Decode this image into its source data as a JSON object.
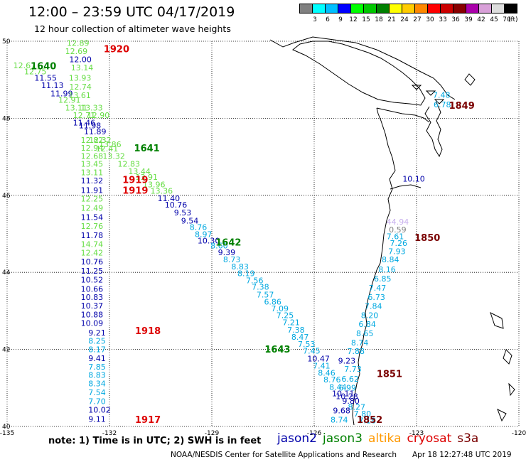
{
  "header": {
    "title": "12:00 – 23:59 UTC 04/17/2019",
    "subtitle": "12 hour collection of altimeter wave heights"
  },
  "legend": {
    "unit": "(ft)",
    "bins": [
      {
        "color": "#808080",
        "label": "3"
      },
      {
        "color": "#00ffff",
        "label": "6"
      },
      {
        "color": "#00bfff",
        "label": "9"
      },
      {
        "color": "#0000ff",
        "label": "12"
      },
      {
        "color": "#00ff00",
        "label": "15"
      },
      {
        "color": "#00c800",
        "label": "18"
      },
      {
        "color": "#008000",
        "label": "21"
      },
      {
        "color": "#ffff00",
        "label": "24"
      },
      {
        "color": "#ffcc00",
        "label": "27"
      },
      {
        "color": "#ff8800",
        "label": "30"
      },
      {
        "color": "#ff0000",
        "label": "33"
      },
      {
        "color": "#cc0000",
        "label": "36"
      },
      {
        "color": "#880000",
        "label": "39"
      },
      {
        "color": "#aa00aa",
        "label": "42"
      },
      {
        "color": "#d8a0d8",
        "label": "45"
      },
      {
        "color": "#dddddd",
        "label": "70"
      },
      {
        "color": "#000000",
        "label": ""
      }
    ]
  },
  "axes": {
    "lon_labels": [
      "-135",
      "-132",
      "-129",
      "-126",
      "-123",
      "-120"
    ],
    "lat_labels": [
      "50",
      "48",
      "46",
      "44",
      "42",
      "40"
    ]
  },
  "colors": {
    "jason2": "#0000aa",
    "jason3": "#008000",
    "altika": "#ff9900",
    "cryosat": "#dd0000",
    "s3a": "#7a0000",
    "light_green": "#66dd44",
    "cyan": "#00a8e0",
    "lavender": "#c8b0ee",
    "gray": "#808080"
  },
  "time_labels": [
    {
      "text": "1920",
      "lon": -132.17,
      "lat": 49.71,
      "sat": "cryosat"
    },
    {
      "text": "1640",
      "lon": -134.31,
      "lat": 49.27,
      "sat": "jason3"
    },
    {
      "text": "1849",
      "lon": -122.05,
      "lat": 48.25,
      "sat": "s3a"
    },
    {
      "text": "1641",
      "lon": -131.28,
      "lat": 47.14,
      "sat": "jason3"
    },
    {
      "text": "1919",
      "lon": -131.62,
      "lat": 46.32,
      "sat": "cryosat"
    },
    {
      "text": "1919",
      "lon": -131.62,
      "lat": 46.04,
      "sat": "cryosat"
    },
    {
      "text": "1850",
      "lon": -123.06,
      "lat": 44.82,
      "sat": "s3a"
    },
    {
      "text": "1642",
      "lon": -128.89,
      "lat": 44.7,
      "sat": "jason3"
    },
    {
      "text": "1918",
      "lon": -131.25,
      "lat": 42.4,
      "sat": "cryosat"
    },
    {
      "text": "1643",
      "lon": -127.45,
      "lat": 41.92,
      "sat": "jason3"
    },
    {
      "text": "1851",
      "lon": -124.17,
      "lat": 41.28,
      "sat": "s3a"
    },
    {
      "text": "1917",
      "lon": -131.25,
      "lat": 40.09,
      "sat": "cryosat"
    },
    {
      "text": "1852",
      "lon": -124.75,
      "lat": 40.09,
      "sat": "s3a"
    }
  ],
  "observations": [
    {
      "text": "12.89",
      "lon": -133.25,
      "lat": 49.88,
      "c": "light_green"
    },
    {
      "text": "12.69",
      "lon": -133.3,
      "lat": 49.67,
      "c": "light_green"
    },
    {
      "text": "12.00",
      "lon": -133.18,
      "lat": 49.46,
      "c": "jason2"
    },
    {
      "text": "12.67",
      "lon": -134.82,
      "lat": 49.3,
      "c": "light_green"
    },
    {
      "text": "12.75",
      "lon": -134.5,
      "lat": 49.14,
      "c": "light_green"
    },
    {
      "text": "13.14",
      "lon": -133.13,
      "lat": 49.24,
      "c": "light_green"
    },
    {
      "text": "11.55",
      "lon": -134.2,
      "lat": 48.98,
      "c": "jason2"
    },
    {
      "text": "13.93",
      "lon": -133.19,
      "lat": 48.98,
      "c": "light_green"
    },
    {
      "text": "11.13",
      "lon": -134.0,
      "lat": 48.78,
      "c": "jason2"
    },
    {
      "text": "12.74",
      "lon": -133.18,
      "lat": 48.75,
      "c": "light_green"
    },
    {
      "text": "11.99",
      "lon": -133.73,
      "lat": 48.57,
      "c": "jason2"
    },
    {
      "text": "13.61",
      "lon": -133.2,
      "lat": 48.52,
      "c": "light_green"
    },
    {
      "text": "12.91",
      "lon": -133.5,
      "lat": 48.4,
      "c": "light_green"
    },
    {
      "text": "13.11",
      "lon": -133.3,
      "lat": 48.2,
      "c": "light_green"
    },
    {
      "text": "13.33",
      "lon": -132.85,
      "lat": 48.2,
      "c": "light_green"
    },
    {
      "text": "12.71",
      "lon": -133.07,
      "lat": 48.01,
      "c": "light_green"
    },
    {
      "text": "12.90",
      "lon": -132.65,
      "lat": 48.01,
      "c": "light_green"
    },
    {
      "text": "11.46",
      "lon": -133.07,
      "lat": 47.81,
      "c": "jason2"
    },
    {
      "text": "11.98",
      "lon": -132.9,
      "lat": 47.74,
      "c": "jason2"
    },
    {
      "text": "11.89",
      "lon": -132.75,
      "lat": 47.58,
      "c": "jason2"
    },
    {
      "text": "12.82",
      "lon": -132.84,
      "lat": 47.36,
      "c": "light_green"
    },
    {
      "text": "12.32",
      "lon": -132.6,
      "lat": 47.36,
      "c": "light_green"
    },
    {
      "text": "12.94",
      "lon": -132.84,
      "lat": 47.16,
      "c": "light_green"
    },
    {
      "text": "13.86",
      "lon": -132.31,
      "lat": 47.25,
      "c": "light_green"
    },
    {
      "text": "12.41",
      "lon": -132.4,
      "lat": 47.14,
      "c": "light_green"
    },
    {
      "text": "12.68",
      "lon": -132.84,
      "lat": 46.95,
      "c": "light_green"
    },
    {
      "text": "13.32",
      "lon": -132.2,
      "lat": 46.95,
      "c": "light_green"
    },
    {
      "text": "12.83",
      "lon": -131.76,
      "lat": 46.74,
      "c": "light_green"
    },
    {
      "text": "13.45",
      "lon": -132.84,
      "lat": 46.74,
      "c": "light_green"
    },
    {
      "text": "13.44",
      "lon": -131.45,
      "lat": 46.55,
      "c": "light_green"
    },
    {
      "text": "13.11",
      "lon": -132.84,
      "lat": 46.52,
      "c": "light_green"
    },
    {
      "text": "13.91",
      "lon": -131.24,
      "lat": 46.4,
      "c": "light_green"
    },
    {
      "text": "11.32",
      "lon": -132.84,
      "lat": 46.31,
      "c": "jason2"
    },
    {
      "text": "13.96",
      "lon": -131.02,
      "lat": 46.21,
      "c": "light_green"
    },
    {
      "text": "11.91",
      "lon": -132.84,
      "lat": 46.06,
      "c": "jason2"
    },
    {
      "text": "13.36",
      "lon": -130.8,
      "lat": 46.04,
      "c": "light_green"
    },
    {
      "text": "11.40",
      "lon": -130.59,
      "lat": 45.85,
      "c": "jason2"
    },
    {
      "text": "12.25",
      "lon": -132.84,
      "lat": 45.84,
      "c": "light_green"
    },
    {
      "text": "10.76",
      "lon": -130.38,
      "lat": 45.68,
      "c": "jason2"
    },
    {
      "text": "12.49",
      "lon": -132.84,
      "lat": 45.6,
      "c": "light_green"
    },
    {
      "text": "9.53",
      "lon": -130.11,
      "lat": 45.48,
      "c": "jason2"
    },
    {
      "text": "11.54",
      "lon": -132.84,
      "lat": 45.36,
      "c": "jason2"
    },
    {
      "text": "9.54",
      "lon": -129.9,
      "lat": 45.27,
      "c": "jason2"
    },
    {
      "text": "12.76",
      "lon": -132.84,
      "lat": 45.13,
      "c": "light_green"
    },
    {
      "text": "8.76",
      "lon": -129.65,
      "lat": 45.1,
      "c": "cyan"
    },
    {
      "text": "8.97",
      "lon": -129.5,
      "lat": 44.92,
      "c": "cyan"
    },
    {
      "text": "11.78",
      "lon": -132.84,
      "lat": 44.89,
      "c": "jason2"
    },
    {
      "text": "10.30",
      "lon": -129.42,
      "lat": 44.75,
      "c": "jason2"
    },
    {
      "text": "8.60",
      "lon": -129.04,
      "lat": 44.62,
      "c": "cyan"
    },
    {
      "text": "14.74",
      "lon": -132.84,
      "lat": 44.66,
      "c": "light_green"
    },
    {
      "text": "9.39",
      "lon": -128.82,
      "lat": 44.45,
      "c": "jason2"
    },
    {
      "text": "12.42",
      "lon": -132.84,
      "lat": 44.44,
      "c": "light_green"
    },
    {
      "text": "8.73",
      "lon": -128.67,
      "lat": 44.26,
      "c": "cyan"
    },
    {
      "text": "10.76",
      "lon": -132.84,
      "lat": 44.21,
      "c": "jason2"
    },
    {
      "text": "8.83",
      "lon": -128.43,
      "lat": 44.08,
      "c": "cyan"
    },
    {
      "text": "11.25",
      "lon": -132.84,
      "lat": 43.97,
      "c": "jason2"
    },
    {
      "text": "8.19",
      "lon": -128.25,
      "lat": 43.9,
      "c": "cyan"
    },
    {
      "text": "10.52",
      "lon": -132.84,
      "lat": 43.74,
      "c": "jason2"
    },
    {
      "text": "7.56",
      "lon": -128.0,
      "lat": 43.72,
      "c": "cyan"
    },
    {
      "text": "7.38",
      "lon": -127.83,
      "lat": 43.55,
      "c": "cyan"
    },
    {
      "text": "10.66",
      "lon": -132.84,
      "lat": 43.5,
      "c": "jason2"
    },
    {
      "text": "7.57",
      "lon": -127.69,
      "lat": 43.35,
      "c": "cyan"
    },
    {
      "text": "10.83",
      "lon": -132.84,
      "lat": 43.28,
      "c": "jason2"
    },
    {
      "text": "6.86",
      "lon": -127.47,
      "lat": 43.16,
      "c": "cyan"
    },
    {
      "text": "10.37",
      "lon": -132.84,
      "lat": 43.06,
      "c": "jason2"
    },
    {
      "text": "7.09",
      "lon": -127.26,
      "lat": 42.99,
      "c": "cyan"
    },
    {
      "text": "10.88",
      "lon": -132.84,
      "lat": 42.83,
      "c": "jason2"
    },
    {
      "text": "7.25",
      "lon": -127.11,
      "lat": 42.81,
      "c": "cyan"
    },
    {
      "text": "10.09",
      "lon": -132.84,
      "lat": 42.61,
      "c": "jason2"
    },
    {
      "text": "7.21",
      "lon": -126.93,
      "lat": 42.63,
      "c": "cyan"
    },
    {
      "text": "7.38",
      "lon": -126.79,
      "lat": 42.44,
      "c": "cyan"
    },
    {
      "text": "9.21",
      "lon": -132.62,
      "lat": 42.36,
      "c": "jason2"
    },
    {
      "text": "8.47",
      "lon": -126.67,
      "lat": 42.25,
      "c": "cyan"
    },
    {
      "text": "8.25",
      "lon": -132.62,
      "lat": 42.15,
      "c": "cyan"
    },
    {
      "text": "7.53",
      "lon": -126.48,
      "lat": 42.07,
      "c": "cyan"
    },
    {
      "text": "8.17",
      "lon": -132.62,
      "lat": 41.93,
      "c": "cyan"
    },
    {
      "text": "7.45",
      "lon": -126.33,
      "lat": 41.89,
      "c": "cyan"
    },
    {
      "text": "10.47",
      "lon": -126.2,
      "lat": 41.69,
      "c": "jason2"
    },
    {
      "text": "9.41",
      "lon": -132.62,
      "lat": 41.7,
      "c": "jason2"
    },
    {
      "text": "7.41",
      "lon": -126.04,
      "lat": 41.5,
      "c": "cyan"
    },
    {
      "text": "7.85",
      "lon": -132.62,
      "lat": 41.48,
      "c": "cyan"
    },
    {
      "text": "8.46",
      "lon": -125.89,
      "lat": 41.32,
      "c": "cyan"
    },
    {
      "text": "8.83",
      "lon": -132.62,
      "lat": 41.26,
      "c": "cyan"
    },
    {
      "text": "8.76",
      "lon": -125.73,
      "lat": 41.14,
      "c": "cyan"
    },
    {
      "text": "8.34",
      "lon": -132.62,
      "lat": 41.04,
      "c": "cyan"
    },
    {
      "text": "8.44",
      "lon": -125.56,
      "lat": 40.95,
      "c": "cyan"
    },
    {
      "text": "7.54",
      "lon": -132.62,
      "lat": 40.81,
      "c": "cyan"
    },
    {
      "text": "10.11",
      "lon": -125.48,
      "lat": 40.78,
      "c": "jason2"
    },
    {
      "text": "7.70",
      "lon": -132.62,
      "lat": 40.58,
      "c": "cyan"
    },
    {
      "text": "9.80",
      "lon": -125.18,
      "lat": 40.59,
      "c": "jason2"
    },
    {
      "text": "10.02",
      "lon": -132.62,
      "lat": 40.36,
      "c": "jason2"
    },
    {
      "text": "8.27",
      "lon": -125.01,
      "lat": 40.43,
      "c": "cyan"
    },
    {
      "text": "7.80",
      "lon": -124.84,
      "lat": 40.26,
      "c": "cyan"
    },
    {
      "text": "9.11",
      "lon": -132.62,
      "lat": 40.12,
      "c": "jason2"
    },
    {
      "text": "7.18",
      "lon": -124.7,
      "lat": 40.08,
      "c": "cyan"
    },
    {
      "text": "7.48",
      "lon": -122.52,
      "lat": 48.53,
      "c": "cyan"
    },
    {
      "text": "6.78",
      "lon": -122.5,
      "lat": 48.28,
      "c": "cyan"
    },
    {
      "text": "10.10",
      "lon": -123.41,
      "lat": 46.36,
      "c": "jason2"
    },
    {
      "text": "44.94",
      "lon": -123.88,
      "lat": 45.24,
      "c": "lavender"
    },
    {
      "text": "0.59",
      "lon": -123.81,
      "lat": 45.04,
      "c": "gray"
    },
    {
      "text": "7.61",
      "lon": -123.88,
      "lat": 44.86,
      "c": "cyan"
    },
    {
      "text": "7.26",
      "lon": -123.78,
      "lat": 44.69,
      "c": "cyan"
    },
    {
      "text": "7.93",
      "lon": -123.83,
      "lat": 44.47,
      "c": "cyan"
    },
    {
      "text": "8.84",
      "lon": -124.02,
      "lat": 44.26,
      "c": "cyan"
    },
    {
      "text": "8.16",
      "lon": -124.12,
      "lat": 44.0,
      "c": "cyan"
    },
    {
      "text": "6.85",
      "lon": -124.25,
      "lat": 43.76,
      "c": "cyan"
    },
    {
      "text": "7.47",
      "lon": -124.4,
      "lat": 43.52,
      "c": "cyan"
    },
    {
      "text": "6.73",
      "lon": -124.43,
      "lat": 43.28,
      "c": "cyan"
    },
    {
      "text": "7.84",
      "lon": -124.52,
      "lat": 43.05,
      "c": "cyan"
    },
    {
      "text": "8.20",
      "lon": -124.63,
      "lat": 42.81,
      "c": "cyan"
    },
    {
      "text": "6.84",
      "lon": -124.7,
      "lat": 42.58,
      "c": "cyan"
    },
    {
      "text": "8.65",
      "lon": -124.77,
      "lat": 42.34,
      "c": "cyan"
    },
    {
      "text": "8.74",
      "lon": -124.92,
      "lat": 42.1,
      "c": "cyan"
    },
    {
      "text": "7.88",
      "lon": -125.03,
      "lat": 41.88,
      "c": "cyan"
    },
    {
      "text": "9.23",
      "lon": -125.3,
      "lat": 41.63,
      "c": "jason2"
    },
    {
      "text": "7.73",
      "lon": -125.12,
      "lat": 41.42,
      "c": "cyan"
    },
    {
      "text": "6.62",
      "lon": -125.2,
      "lat": 41.16,
      "c": "cyan"
    },
    {
      "text": "6.99",
      "lon": -125.28,
      "lat": 40.93,
      "c": "cyan"
    },
    {
      "text": "10.28",
      "lon": -125.37,
      "lat": 40.71,
      "c": "jason2"
    },
    {
      "text": "9.68",
      "lon": -125.45,
      "lat": 40.34,
      "c": "jason2"
    },
    {
      "text": "8.74",
      "lon": -125.52,
      "lat": 40.1,
      "c": "cyan"
    }
  ],
  "footer": {
    "note": "note:  1) Time is in UTC;  2) SWH is in feet",
    "satellites": [
      {
        "name": "jason2",
        "color_key": "jason2"
      },
      {
        "name": "jason3",
        "color_key": "jason3"
      },
      {
        "name": "altika",
        "color_key": "altika"
      },
      {
        "name": "cryosat",
        "color_key": "cryosat"
      },
      {
        "name": "s3a",
        "color_key": "s3a"
      }
    ],
    "credit": "NOAA/NESDIS Center for Satellite Applications and Research",
    "timestamp": "Apr 18 12:27:48 UTC 2019"
  }
}
